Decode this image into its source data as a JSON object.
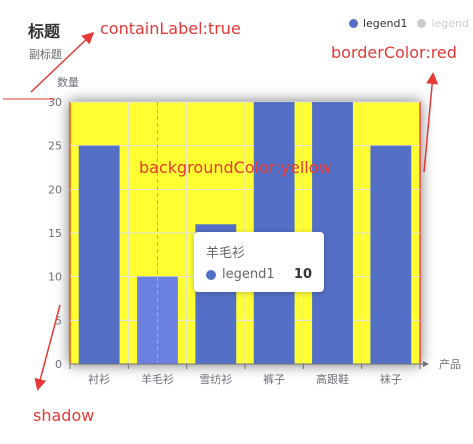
{
  "chart_data": {
    "type": "bar",
    "title": "标题",
    "subtitle": "副标题",
    "ylabel": "数量",
    "xlabel": "产品",
    "categories": [
      "衬衫",
      "羊毛衫",
      "雪纺衫",
      "裤子",
      "高跟鞋",
      "袜子"
    ],
    "series": [
      {
        "name": "legend1",
        "values": [
          25,
          10,
          16,
          30,
          30,
          25
        ],
        "color": "#5470c6"
      }
    ],
    "yticks": [
      0,
      5,
      10,
      15,
      20,
      25,
      30
    ],
    "ylim": [
      0,
      30
    ],
    "legend": [
      {
        "name": "legend1",
        "active": true
      },
      {
        "name": "legend",
        "active": false
      }
    ],
    "legend_position": "top-right",
    "grid_background": "#ffff33",
    "grid_border_color": "red",
    "tooltip": {
      "title": "羊毛衫",
      "series": "legend1",
      "value": "10"
    },
    "annotations": {
      "contain_label": "containLabel:true",
      "border_color": "borderColor:red",
      "background_color": "backgroundColor:yellow",
      "shadow": "shadow"
    }
  }
}
